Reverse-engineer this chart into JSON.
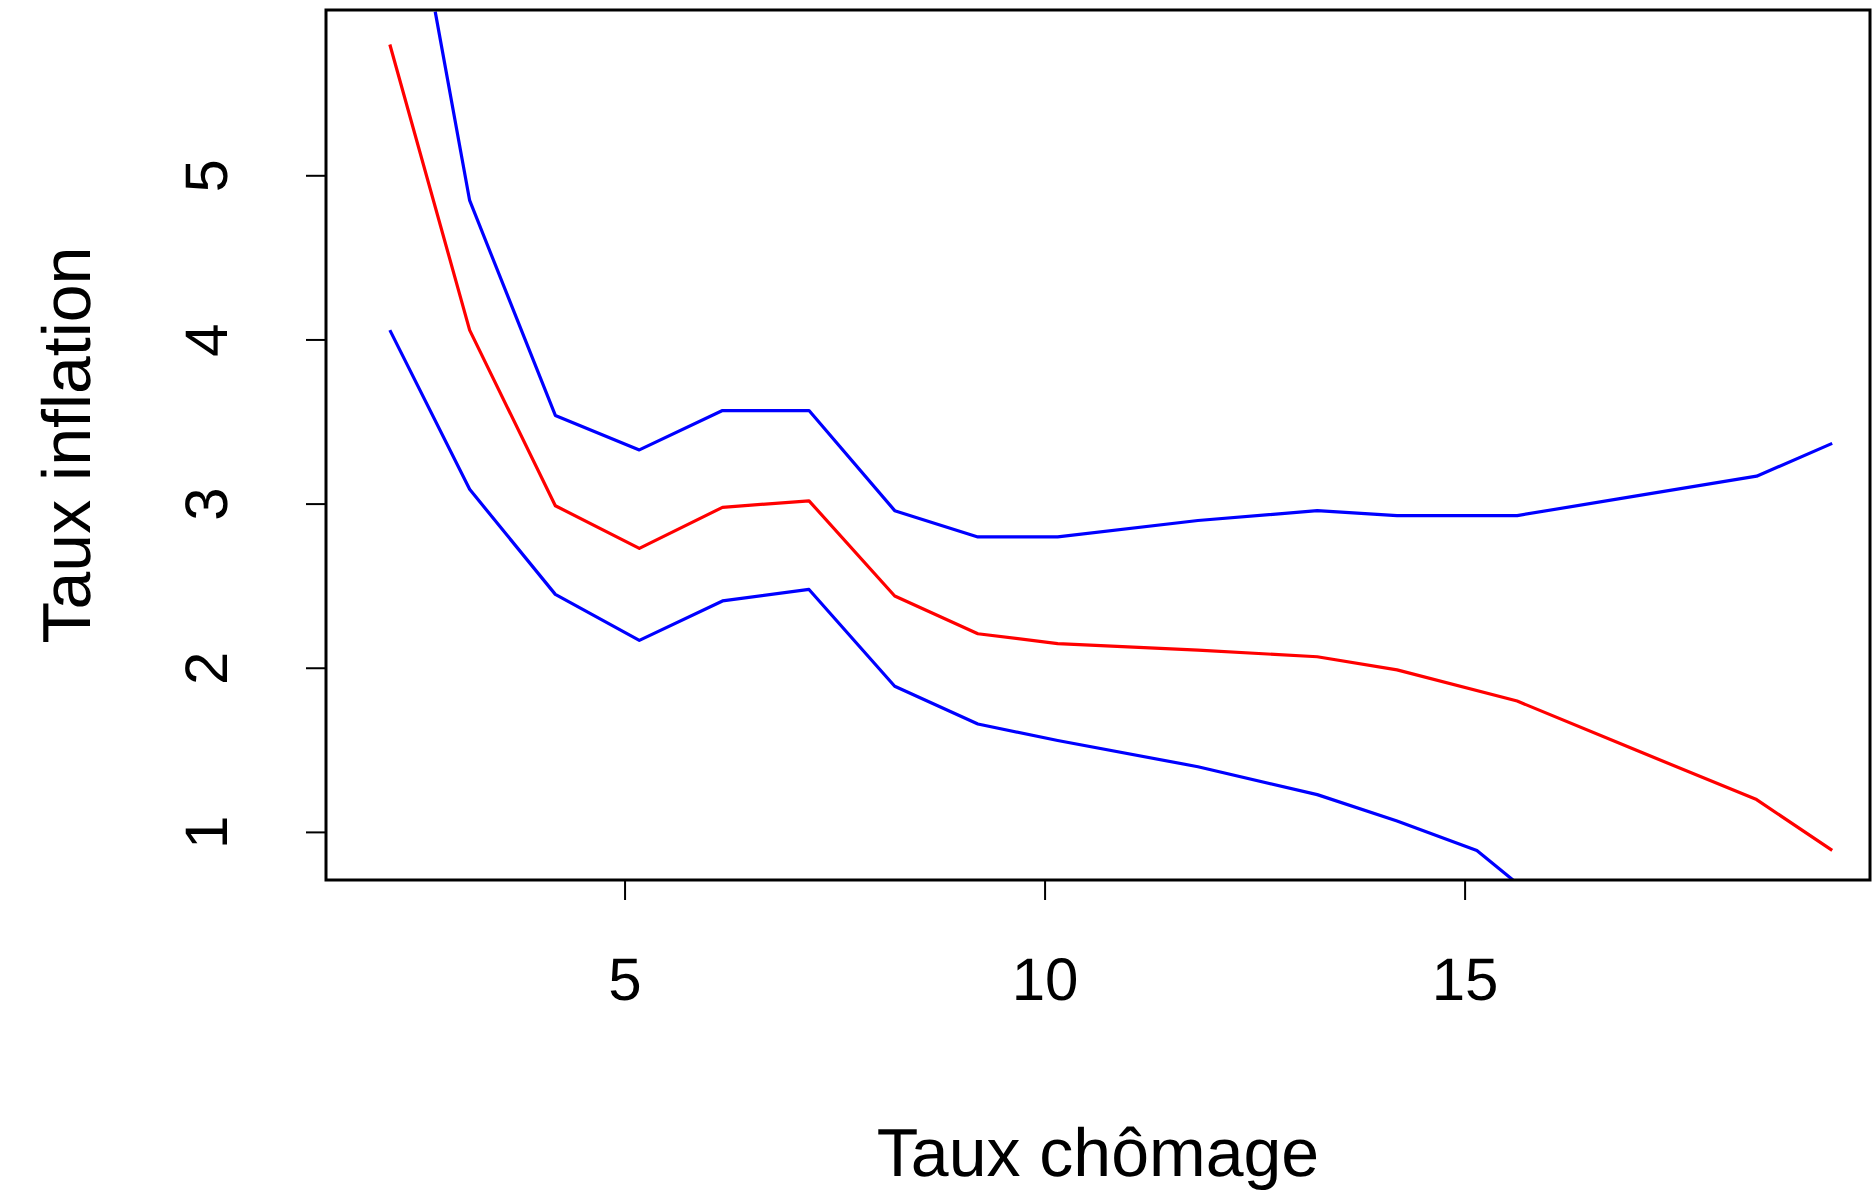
{
  "chart_data": {
    "type": "line",
    "xlabel": "Taux chômage",
    "ylabel": "Taux inflation",
    "xlim": [
      1.44,
      19.82
    ],
    "ylim": [
      0.71,
      6.01
    ],
    "xticks": [
      5,
      10,
      15
    ],
    "yticks": [
      1,
      2,
      3,
      4,
      5
    ],
    "grid": false,
    "marker": "none",
    "line_style": "solid",
    "series": [
      {
        "color": "#ff0000",
        "x": [
          2.2,
          3.15,
          4.17,
          5.17,
          6.16,
          7.19,
          8.21,
          9.2,
          10.15,
          11.82,
          13.24,
          14.19,
          15.62,
          17.04,
          18.47,
          19.37
        ],
        "values": [
          5.8,
          4.06,
          2.99,
          2.73,
          2.98,
          3.02,
          2.44,
          2.21,
          2.15,
          2.11,
          2.07,
          1.99,
          1.8,
          1.5,
          1.2,
          0.89
        ]
      },
      {
        "color": "#0000ff",
        "x": [
          2.74,
          3.15,
          4.17,
          5.17,
          6.16,
          7.19,
          8.21,
          9.2,
          10.15,
          11.82,
          13.24,
          14.19,
          15.62,
          17.04,
          18.47,
          19.37
        ],
        "values": [
          6.0,
          4.85,
          3.54,
          3.33,
          3.57,
          3.57,
          2.96,
          2.8,
          2.8,
          2.9,
          2.96,
          2.93,
          2.93,
          3.05,
          3.17,
          3.37
        ]
      },
      {
        "color": "#0000ff",
        "x": [
          2.2,
          3.15,
          4.17,
          5.17,
          6.16,
          7.19,
          8.21,
          9.2,
          10.15,
          11.82,
          13.24,
          14.19,
          15.14,
          15.57
        ],
        "values": [
          4.06,
          3.09,
          2.45,
          2.17,
          2.41,
          2.48,
          1.89,
          1.66,
          1.56,
          1.4,
          1.23,
          1.07,
          0.89,
          0.71
        ]
      }
    ]
  }
}
